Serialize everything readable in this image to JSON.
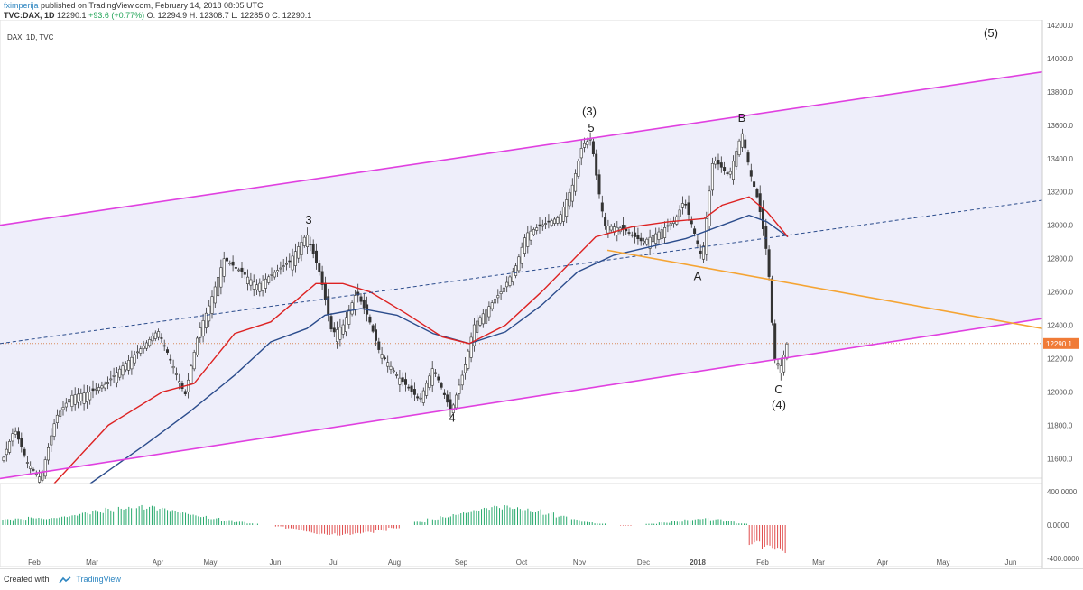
{
  "header": {
    "author": "fximperija",
    "published": " published on TradingView.com, February 14, 2018 08:05 UTC",
    "symbol": "TVC:DAX, 1D",
    "change": "+93.6 (+0.77%)",
    "ohlc": "O: 12294.9  H: 12308.7  L: 12285.0  C: 12290.1",
    "close": "12290.1"
  },
  "footer": {
    "created": "Created with",
    "brand": "TradingView",
    "brand_icon": "tradingview-logo-icon"
  },
  "colors": {
    "channel": "#e040e0",
    "channel_fill": "#eeeefa",
    "orange": "#f5a433",
    "ema": "#dd2222",
    "ma": "#2b4c8c",
    "up": "#26a96c",
    "down": "#e04c4c",
    "candle": "#333333"
  },
  "chart_data": {
    "type": "candlestick",
    "legend": "DAX, 1D, TVC",
    "y_range": [
      11450,
      14200
    ],
    "y_ticks": [
      11600,
      11800,
      12000,
      12200,
      12400,
      12600,
      12800,
      13000,
      13200,
      13400,
      13600,
      13800,
      14000,
      14200
    ],
    "x_labels": [
      "Feb",
      "Mar",
      "Apr",
      "May",
      "Jun",
      "Jul",
      "Aug",
      "Sep",
      "Oct",
      "Nov",
      "Dec",
      "2018",
      "Feb",
      "Mar",
      "Apr",
      "May",
      "Jun"
    ],
    "last_price": 12290.1,
    "price_path": [
      [
        0,
        11550
      ],
      [
        16,
        11780
      ],
      [
        30,
        11580
      ],
      [
        45,
        11480
      ],
      [
        62,
        11850
      ],
      [
        80,
        11980
      ],
      [
        100,
        12000
      ],
      [
        118,
        12050
      ],
      [
        135,
        12150
      ],
      [
        160,
        12280
      ],
      [
        175,
        12370
      ],
      [
        190,
        12180
      ],
      [
        205,
        11980
      ],
      [
        220,
        12360
      ],
      [
        232,
        12520
      ],
      [
        248,
        12800
      ],
      [
        268,
        12720
      ],
      [
        285,
        12640
      ],
      [
        300,
        12700
      ],
      [
        320,
        12780
      ],
      [
        340,
        12950
      ],
      [
        355,
        12700
      ],
      [
        368,
        12350
      ],
      [
        380,
        12400
      ],
      [
        395,
        12600
      ],
      [
        408,
        12450
      ],
      [
        420,
        12250
      ],
      [
        440,
        12100
      ],
      [
        465,
        11950
      ],
      [
        480,
        12150
      ],
      [
        500,
        11880
      ],
      [
        515,
        12150
      ],
      [
        525,
        12400
      ],
      [
        540,
        12500
      ],
      [
        558,
        12620
      ],
      [
        572,
        12760
      ],
      [
        583,
        12950
      ],
      [
        600,
        13000
      ],
      [
        620,
        13050
      ],
      [
        635,
        13250
      ],
      [
        645,
        13480
      ],
      [
        655,
        13520
      ],
      [
        662,
        13250
      ],
      [
        670,
        13000
      ],
      [
        690,
        12980
      ],
      [
        712,
        12900
      ],
      [
        730,
        12960
      ],
      [
        748,
        13030
      ],
      [
        758,
        13150
      ],
      [
        768,
        12980
      ],
      [
        778,
        12800
      ],
      [
        790,
        13400
      ],
      [
        808,
        13300
      ],
      [
        822,
        13560
      ],
      [
        832,
        13300
      ],
      [
        840,
        13150
      ],
      [
        848,
        12900
      ],
      [
        852,
        12700
      ],
      [
        858,
        12200
      ],
      [
        865,
        12150
      ],
      [
        872,
        12290
      ]
    ],
    "ema_path": [
      [
        60,
        11450
      ],
      [
        120,
        11800
      ],
      [
        180,
        12000
      ],
      [
        215,
        12050
      ],
      [
        260,
        12350
      ],
      [
        300,
        12420
      ],
      [
        350,
        12650
      ],
      [
        380,
        12650
      ],
      [
        410,
        12600
      ],
      [
        450,
        12470
      ],
      [
        490,
        12330
      ],
      [
        520,
        12290
      ],
      [
        560,
        12400
      ],
      [
        600,
        12600
      ],
      [
        640,
        12820
      ],
      [
        660,
        12930
      ],
      [
        700,
        12990
      ],
      [
        740,
        13020
      ],
      [
        780,
        13040
      ],
      [
        800,
        13120
      ],
      [
        830,
        13170
      ],
      [
        850,
        13080
      ],
      [
        873,
        12930
      ]
    ],
    "ma_path": [
      [
        100,
        11450
      ],
      [
        160,
        11680
      ],
      [
        210,
        11880
      ],
      [
        260,
        12100
      ],
      [
        300,
        12300
      ],
      [
        340,
        12380
      ],
      [
        360,
        12460
      ],
      [
        400,
        12500
      ],
      [
        440,
        12460
      ],
      [
        480,
        12350
      ],
      [
        520,
        12290
      ],
      [
        560,
        12360
      ],
      [
        600,
        12520
      ],
      [
        640,
        12720
      ],
      [
        680,
        12820
      ],
      [
        720,
        12870
      ],
      [
        760,
        12920
      ],
      [
        800,
        13000
      ],
      [
        830,
        13060
      ],
      [
        850,
        13020
      ],
      [
        873,
        12930
      ]
    ],
    "histogram": [
      0.18,
      0.2,
      0.25,
      0.22,
      0.26,
      0.3,
      0.38,
      0.45,
      0.52,
      0.58,
      0.6,
      0.58,
      0.52,
      0.45,
      0.38,
      0.3,
      0.22,
      0.15,
      0.1,
      0.05,
      0.0,
      -0.05,
      -0.12,
      -0.2,
      -0.28,
      -0.3,
      -0.32,
      -0.3,
      -0.25,
      -0.18,
      -0.1,
      0.0,
      0.1,
      0.2,
      0.28,
      0.38,
      0.45,
      0.52,
      0.58,
      0.6,
      0.55,
      0.48,
      0.38,
      0.28,
      0.18,
      0.1,
      0.05,
      0.0,
      -0.02,
      0.0,
      0.04,
      0.08,
      0.12,
      0.18,
      0.22,
      0.18,
      0.12,
      0.05,
      -0.6,
      -0.75,
      -0.85
    ],
    "osc_range": [
      -500,
      500
    ],
    "osc_ticks": [
      400,
      0,
      -400
    ],
    "annotations": [
      {
        "text": "(5)",
        "x": 1098,
        "price": 14130
      },
      {
        "text": "(3)",
        "x": 653,
        "price": 13660
      },
      {
        "text": "5",
        "x": 655,
        "price": 13560
      },
      {
        "text": "B",
        "x": 822,
        "price": 13620
      },
      {
        "text": "3",
        "x": 342,
        "price": 13010
      },
      {
        "text": "A",
        "x": 773,
        "price": 12670
      },
      {
        "text": "4",
        "x": 501,
        "price": 11820
      },
      {
        "text": "C",
        "x": 863,
        "price": 11990
      },
      {
        "text": "(4)",
        "x": 863,
        "price": 11900
      }
    ],
    "lines": {
      "channel_upper": [
        [
          0,
          13000
        ],
        [
          1155,
          13920
        ]
      ],
      "channel_lower": [
        [
          0,
          11480
        ],
        [
          1155,
          12440
        ]
      ],
      "midline": [
        [
          0,
          12290
        ],
        [
          1155,
          13150
        ]
      ],
      "orange": [
        [
          673,
          12850
        ],
        [
          1155,
          12380
        ]
      ]
    }
  }
}
